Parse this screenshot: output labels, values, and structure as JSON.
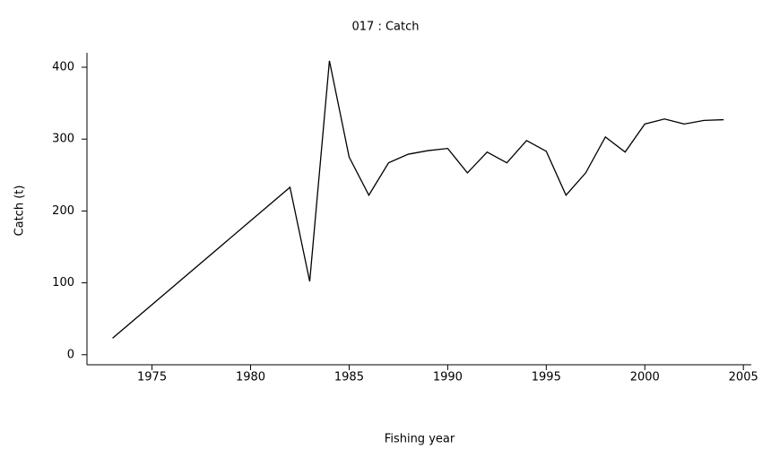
{
  "chart_data": {
    "type": "line",
    "title": "017 : Catch",
    "x_label": "Fishing year",
    "y_label": "Catch (t)",
    "x": [
      1973,
      1982,
      1983,
      1984,
      1985,
      1986,
      1987,
      1988,
      1989,
      1990,
      1991,
      1992,
      1993,
      1994,
      1995,
      1996,
      1997,
      1998,
      1999,
      2000,
      2001,
      2002,
      2003,
      2004
    ],
    "series": [
      {
        "name": "Catch",
        "color": "#000000",
        "values": [
          23,
          233,
          102,
          409,
          275,
          222,
          267,
          279,
          284,
          287,
          253,
          282,
          267,
          298,
          283,
          222,
          253,
          303,
          282,
          321,
          328,
          321,
          326,
          327
        ]
      }
    ],
    "xlim": [
      1971.7,
      2005.4
    ],
    "xticks": [
      1975,
      1980,
      1985,
      1990,
      1995,
      2000,
      2005
    ],
    "ylim": [
      -14,
      420
    ],
    "yticks": [
      0,
      100,
      200,
      300,
      400
    ]
  }
}
